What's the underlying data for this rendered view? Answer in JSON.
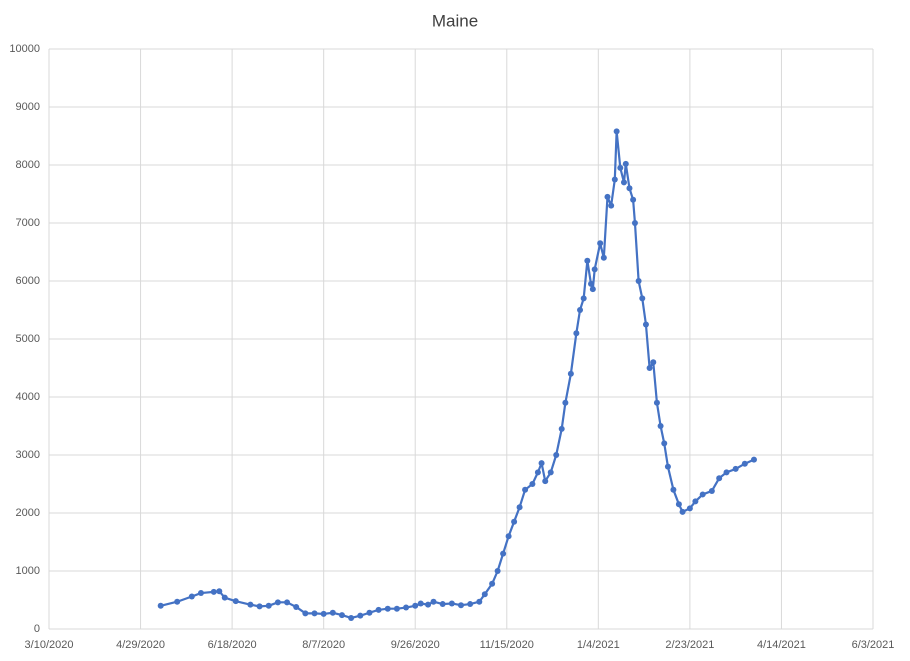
{
  "chart_data": {
    "type": "line",
    "title": "Maine",
    "x": [
      "5/10/2020",
      "5/19/2020",
      "5/27/2020",
      "6/1/2020",
      "6/8/2020",
      "6/11/2020",
      "6/14/2020",
      "6/20/2020",
      "6/28/2020",
      "7/3/2020",
      "7/8/2020",
      "7/13/2020",
      "7/18/2020",
      "7/23/2020",
      "7/28/2020",
      "8/2/2020",
      "8/7/2020",
      "8/12/2020",
      "8/17/2020",
      "8/22/2020",
      "8/27/2020",
      "9/1/2020",
      "9/6/2020",
      "9/11/2020",
      "9/16/2020",
      "9/21/2020",
      "9/26/2020",
      "9/29/2020",
      "10/3/2020",
      "10/6/2020",
      "10/11/2020",
      "10/16/2020",
      "10/21/2020",
      "10/26/2020",
      "10/31/2020",
      "11/3/2020",
      "11/7/2020",
      "11/10/2020",
      "11/13/2020",
      "11/16/2020",
      "11/19/2020",
      "11/22/2020",
      "11/25/2020",
      "11/29/2020",
      "12/2/2020",
      "12/4/2020",
      "12/6/2020",
      "12/9/2020",
      "12/12/2020",
      "12/15/2020",
      "12/17/2020",
      "12/20/2020",
      "12/23/2020",
      "12/25/2020",
      "12/27/2020",
      "12/29/2020",
      "12/31/2020",
      "1/1/2021",
      "1/2/2021",
      "1/5/2021",
      "1/7/2021",
      "1/9/2021",
      "1/11/2021",
      "1/13/2021",
      "1/14/2021",
      "1/16/2021",
      "1/18/2021",
      "1/19/2021",
      "1/21/2021",
      "1/23/2021",
      "1/24/2021",
      "1/26/2021",
      "1/28/2021",
      "1/30/2021",
      "2/1/2021",
      "2/3/2021",
      "2/5/2021",
      "2/7/2021",
      "2/9/2021",
      "2/11/2021",
      "2/14/2021",
      "2/17/2021",
      "2/19/2021",
      "2/23/2021",
      "2/26/2021",
      "3/2/2021",
      "3/7/2021",
      "3/11/2021",
      "3/15/2021",
      "3/20/2021",
      "3/25/2021",
      "3/30/2021"
    ],
    "values": [
      400,
      470,
      560,
      620,
      640,
      650,
      540,
      480,
      420,
      390,
      400,
      460,
      460,
      380,
      270,
      270,
      260,
      280,
      240,
      190,
      230,
      280,
      330,
      350,
      350,
      370,
      400,
      440,
      420,
      470,
      430,
      440,
      410,
      430,
      470,
      600,
      780,
      1000,
      1300,
      1600,
      1850,
      2100,
      2400,
      2500,
      2700,
      2860,
      2550,
      2700,
      3000,
      3450,
      3900,
      4400,
      5100,
      5500,
      5700,
      6350,
      5950,
      5860,
      6200,
      6650,
      6400,
      7450,
      7300,
      7750,
      8580,
      7950,
      7700,
      8020,
      7600,
      7400,
      7000,
      6000,
      5700,
      5250,
      4500,
      4600,
      3900,
      3500,
      3200,
      2800,
      2400,
      2150,
      2020,
      2080,
      2200,
      2320,
      2380,
      2600,
      2700,
      2760,
      2850,
      2920
    ],
    "color": "#4472c4",
    "xlim": [
      "3/10/2020",
      "6/3/2021"
    ],
    "xticks": [
      "3/10/2020",
      "4/29/2020",
      "6/18/2020",
      "8/7/2020",
      "9/26/2020",
      "11/15/2020",
      "1/4/2021",
      "2/23/2021",
      "4/14/2021",
      "6/3/2021"
    ],
    "ylim": [
      0,
      10000
    ],
    "yticks": [
      0,
      1000,
      2000,
      3000,
      4000,
      5000,
      6000,
      7000,
      8000,
      9000,
      10000
    ],
    "grid": true
  }
}
